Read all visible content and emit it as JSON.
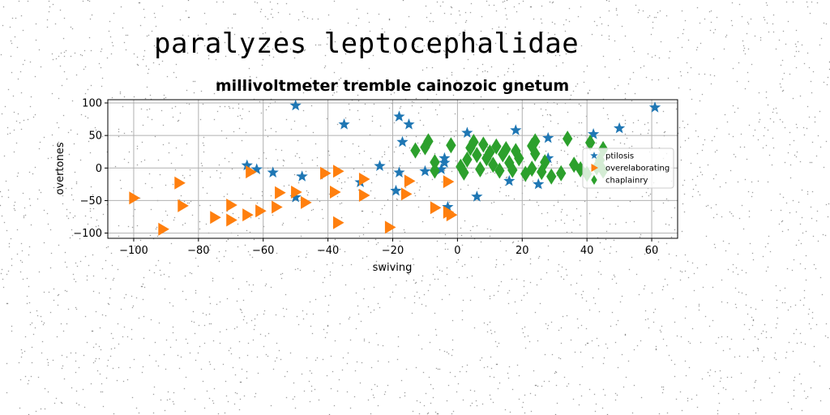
{
  "page": {
    "heading": "paralyzes leptocephalidae"
  },
  "chart_data": {
    "type": "scatter",
    "title": "millivoltmeter tremble cainozoic gnetum",
    "xlabel": "swiving",
    "ylabel": "overtones",
    "xlim": [
      -108,
      68
    ],
    "ylim": [
      -108,
      105
    ],
    "xticks": [
      -100,
      -80,
      -60,
      -40,
      -20,
      0,
      20,
      40,
      60
    ],
    "yticks": [
      -100,
      -50,
      0,
      50,
      100
    ],
    "grid": true,
    "legend_position": "center-right",
    "series": [
      {
        "name": "ptilosis",
        "marker": "star",
        "color": "#1f77b4",
        "points": [
          [
            -50,
            96
          ],
          [
            -35,
            67
          ],
          [
            -18,
            79
          ],
          [
            -15,
            67
          ],
          [
            -17,
            40
          ],
          [
            -65,
            4
          ],
          [
            -62,
            -2
          ],
          [
            -57,
            -7
          ],
          [
            -48,
            -13
          ],
          [
            -30,
            -22
          ],
          [
            -24,
            3
          ],
          [
            -18,
            -7
          ],
          [
            -19,
            -35
          ],
          [
            -50,
            -45
          ],
          [
            -10,
            -5
          ],
          [
            -5,
            -2
          ],
          [
            -4,
            8
          ],
          [
            -4,
            15
          ],
          [
            -3,
            -60
          ],
          [
            3,
            54
          ],
          [
            6,
            -44
          ],
          [
            18,
            58
          ],
          [
            16,
            -20
          ],
          [
            25,
            -25
          ],
          [
            28,
            15
          ],
          [
            28,
            46
          ],
          [
            42,
            52
          ],
          [
            50,
            61
          ],
          [
            61,
            93
          ]
        ]
      },
      {
        "name": "overelaborating",
        "marker": "triangle-right",
        "color": "#ff7f0e",
        "points": [
          [
            -100,
            -46
          ],
          [
            -91,
            -94
          ],
          [
            -86,
            -23
          ],
          [
            -85,
            -58
          ],
          [
            -75,
            -76
          ],
          [
            -70,
            -57
          ],
          [
            -70,
            -80
          ],
          [
            -65,
            -72
          ],
          [
            -64,
            -6
          ],
          [
            -61,
            -66
          ],
          [
            -56,
            -60
          ],
          [
            -55,
            -38
          ],
          [
            -50,
            -37
          ],
          [
            -47,
            -53
          ],
          [
            -41,
            -8
          ],
          [
            -38,
            -37
          ],
          [
            -37,
            -5
          ],
          [
            -37,
            -84
          ],
          [
            -29,
            -17
          ],
          [
            -29,
            -42
          ],
          [
            -21,
            -91
          ],
          [
            -15,
            -20
          ],
          [
            -16,
            -40
          ],
          [
            -7,
            -61
          ],
          [
            -3,
            -21
          ],
          [
            -3,
            -68
          ],
          [
            -2,
            -72
          ]
        ]
      },
      {
        "name": "chaplainry",
        "marker": "diamond",
        "color": "#2ca02c",
        "points": [
          [
            -13,
            27
          ],
          [
            -10,
            32
          ],
          [
            -9,
            41
          ],
          [
            -7,
            9
          ],
          [
            -7,
            -4
          ],
          [
            -2,
            35
          ],
          [
            1,
            2
          ],
          [
            2,
            -7
          ],
          [
            3,
            13
          ],
          [
            4,
            31
          ],
          [
            5,
            40
          ],
          [
            6,
            20
          ],
          [
            7,
            -2
          ],
          [
            8,
            36
          ],
          [
            9,
            15
          ],
          [
            10,
            24
          ],
          [
            11,
            5
          ],
          [
            12,
            33
          ],
          [
            13,
            -4
          ],
          [
            14,
            21
          ],
          [
            15,
            29
          ],
          [
            16,
            8
          ],
          [
            17,
            -3
          ],
          [
            18,
            26
          ],
          [
            19,
            15
          ],
          [
            21,
            -9
          ],
          [
            23,
            -1
          ],
          [
            23,
            34
          ],
          [
            24,
            22
          ],
          [
            24,
            41
          ],
          [
            26,
            -6
          ],
          [
            27,
            9
          ],
          [
            29,
            -13
          ],
          [
            32,
            -8
          ],
          [
            34,
            45
          ],
          [
            36,
            5
          ],
          [
            38,
            -2
          ],
          [
            40,
            -9
          ],
          [
            41,
            39
          ],
          [
            43,
            1
          ],
          [
            44,
            12
          ],
          [
            45,
            -4
          ],
          [
            45,
            29
          ]
        ]
      }
    ]
  }
}
